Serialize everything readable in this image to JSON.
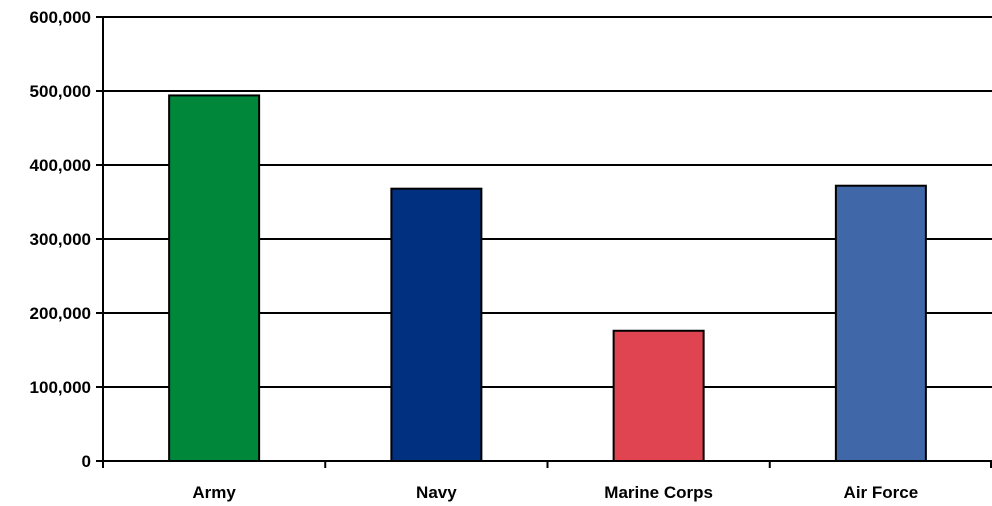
{
  "chart_data": {
    "type": "bar",
    "title": "",
    "xlabel": "",
    "ylabel": "",
    "categories": [
      "Army",
      "Navy",
      "Marine Corps",
      "Air Force"
    ],
    "values": [
      494000,
      368000,
      176000,
      372000
    ],
    "colors": [
      "#00873a",
      "#00307f",
      "#e04450",
      "#4068a8"
    ],
    "ylim": [
      0,
      600000
    ],
    "yticks": [
      0,
      100000,
      200000,
      300000,
      400000,
      500000,
      600000
    ],
    "ytick_labels": [
      "0",
      "100,000",
      "200,000",
      "300,000",
      "400,000",
      "500,000",
      "600,000"
    ],
    "grid": true,
    "legend": "none"
  }
}
